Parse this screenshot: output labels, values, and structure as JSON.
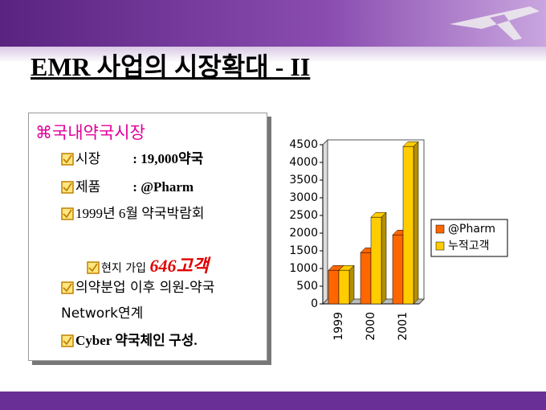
{
  "title": "EMR 사업의 시장확대 - II",
  "box": {
    "heading": "국내약국시장",
    "market_label": "시장",
    "market_value": ": 19,000약국",
    "product_label": "제품",
    "product_value": ": @Pharm",
    "expo": "1999년 6월 약국박람회",
    "signup_label": "현지 가입",
    "signup_value": "646고객",
    "separation": "의약분업 이후  의원-약국 Network연계",
    "cyber": "Cyber 약국체인 구성."
  },
  "chart_data": {
    "type": "bar3d",
    "categories": [
      "1999",
      "2000",
      "2001"
    ],
    "series": [
      {
        "name": "@Pharm",
        "color": "#ff6600",
        "values": [
          950,
          1450,
          1950
        ]
      },
      {
        "name": "누적고객",
        "color": "#ffcc00",
        "values": [
          950,
          2450,
          4450
        ]
      }
    ],
    "ylim": [
      0,
      4500
    ],
    "yticks": [
      0,
      500,
      1000,
      1500,
      2000,
      2500,
      3000,
      3500,
      4000,
      4500
    ],
    "grid": false,
    "legend": "right"
  }
}
